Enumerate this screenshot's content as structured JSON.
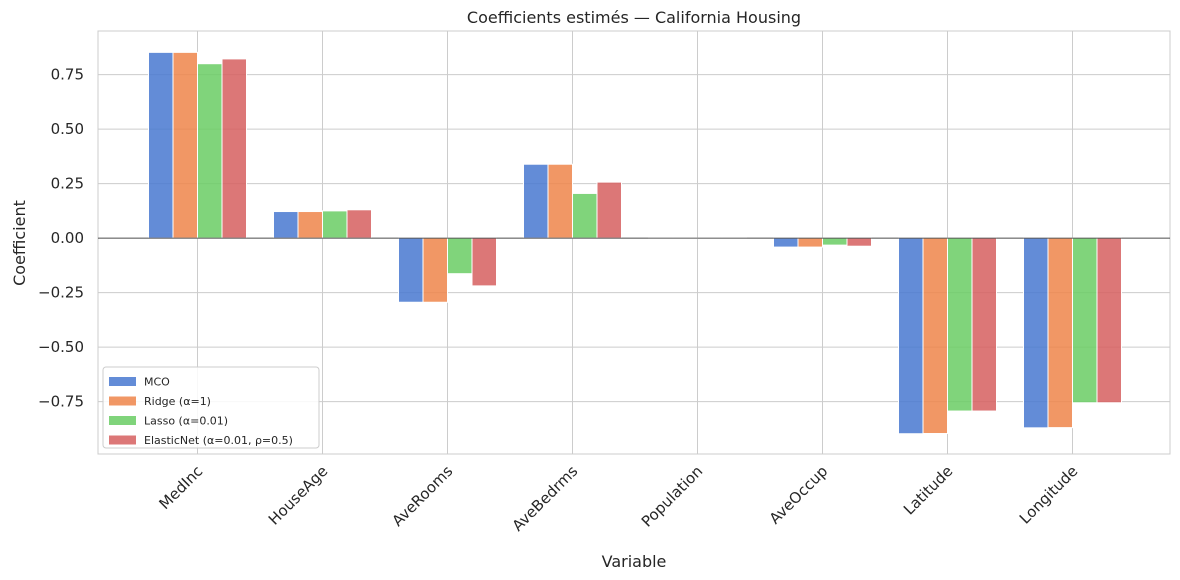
{
  "chart_data": {
    "type": "bar",
    "title": "Coefficients estimés — California Housing",
    "xlabel": "Variable",
    "ylabel": "Coefficient",
    "categories": [
      "MedInc",
      "HouseAge",
      "AveRooms",
      "AveBedrms",
      "Population",
      "AveOccup",
      "Latitude",
      "Longitude"
    ],
    "series": [
      {
        "name": "MCO",
        "color": "#4878d0",
        "values": [
          0.852,
          0.122,
          -0.294,
          0.339,
          -0.002,
          -0.041,
          -0.897,
          -0.87
        ]
      },
      {
        "name": "Ridge (α=1)",
        "color": "#ee854a",
        "values": [
          0.852,
          0.122,
          -0.294,
          0.339,
          -0.002,
          -0.041,
          -0.896,
          -0.869
        ]
      },
      {
        "name": "Lasso (α=0.01)",
        "color": "#6acc64",
        "values": [
          0.8,
          0.125,
          -0.163,
          0.205,
          0.0,
          -0.032,
          -0.793,
          -0.755
        ]
      },
      {
        "name": "ElasticNet (α=0.01, ρ=0.5)",
        "color": "#d65f5f",
        "values": [
          0.822,
          0.13,
          -0.219,
          0.257,
          0.0,
          -0.037,
          -0.793,
          -0.755
        ]
      }
    ],
    "ylim": [
      -0.99,
      0.95
    ],
    "yticks": [
      -0.75,
      -0.5,
      -0.25,
      0.0,
      0.25,
      0.5,
      0.75
    ],
    "ytick_labels": [
      "−0.75",
      "−0.50",
      "−0.25",
      "0.00",
      "0.25",
      "0.50",
      "0.75"
    ],
    "grid": true,
    "legend_position": "bottom-left"
  }
}
